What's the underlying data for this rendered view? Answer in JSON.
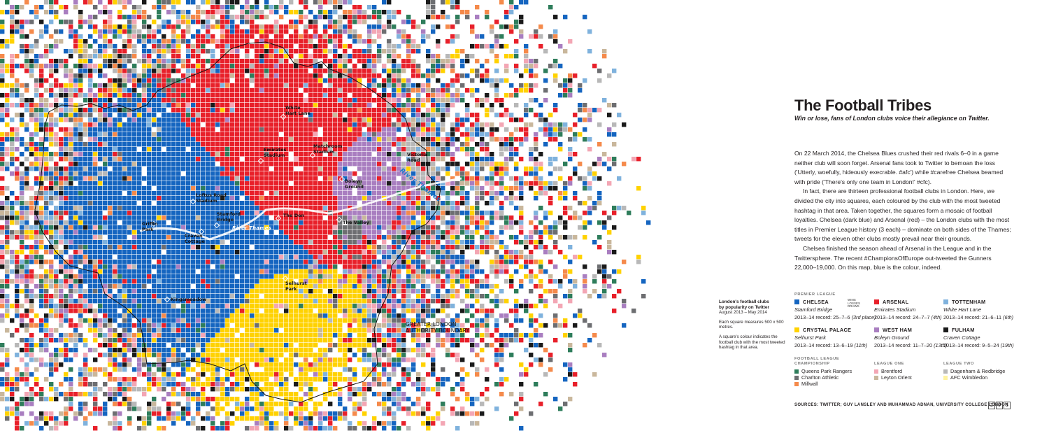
{
  "title": "The Football Tribes",
  "subtitle": "Win or lose, fans of London clubs voice their allegiance on Twitter.",
  "paragraphs": [
    "On 22 March 2014, the Chelsea Blues crushed their red rivals 6–0 in a game neither club will soon forget. Arsenal fans took to Twitter to bemoan the loss ('Utterly, woefully, hideously execrable. #afc') while #carefree Chelsea beamed with pride ('There's only one team in London!' #cfc).",
    "In fact, there are thirteen professional football clubs in London. Here, we divided the city into squares, each coloured by the club with the most tweeted hashtag in that area. Taken together, the squares form a mosaic of football loyalties. Chelsea (dark blue) and Arsenal (red) – the London clubs with the most titles in Premier League history (3 each) – dominate on both sides of the Thames; tweets for the eleven other clubs mostly prevail near their grounds.",
    "Chelsea finished the season ahead of Arsenal in the League and in the Twittersphere. The recent #ChampionsOfEurope out-tweeted the Gunners 22,000–19,000. On this map, blue is the colour, indeed."
  ],
  "map_note": {
    "title_line1": "London's football clubs",
    "title_line2": "by popularity on Twitter",
    "dates": "August 2013 – May 2014",
    "square": "Each square measures 500 x 500 metres.",
    "explain": "A square's colour indicates the football club with the most tweeted hashtag in that area."
  },
  "map": {
    "grounds": [
      {
        "label": "White\nHart Lane",
        "club": "tottenham"
      },
      {
        "label": "Emirates\nStadium",
        "club": "arsenal"
      },
      {
        "label": "Matchroom\nStadium",
        "club": "leyton_orient"
      },
      {
        "label": "Victoria\nRoad",
        "club": "dagenham"
      },
      {
        "label": "Boleyn\nGround",
        "club": "west_ham"
      },
      {
        "label": "Loftus Road\nStadium",
        "club": "qpr"
      },
      {
        "label": "Stamford\nBridge",
        "club": "chelsea"
      },
      {
        "label": "The Den",
        "club": "millwall"
      },
      {
        "label": "The Valley",
        "club": "charlton"
      },
      {
        "label": "Griffin\nPark",
        "club": "brentford"
      },
      {
        "label": "Craven\nCottage",
        "club": "fulham"
      },
      {
        "label": "Selhurst\nPark",
        "club": "crystal_palace"
      },
      {
        "label": "Kingsmeadow",
        "club": "wimbledon"
      }
    ],
    "river_label": "River Thames",
    "river_label_inner": "River Thames",
    "boundary_label_line1": "GREATER LONDON",
    "boundary_label_line2": "AUTHORITY BOUNDARY"
  },
  "legend": {
    "premier_heading": "PREMIER LEAGUE",
    "wld": [
      "WINS",
      "LOSSES",
      "DRAWS"
    ],
    "premier": [
      {
        "name": "CHELSEA",
        "ground": "Stamford Bridge",
        "record_prefix": "2013–14 record: 25–7–6",
        "position": "(3rd place)",
        "color": "#1565c0"
      },
      {
        "name": "ARSENAL",
        "ground": "Emirates Stadium",
        "record_prefix": "2013–14 record: 24–7–7",
        "position": "(4th)",
        "color": "#e8202a"
      },
      {
        "name": "TOTTENHAM",
        "ground": "White Hart Lane",
        "record_prefix": "2013–14 record: 21–6–11",
        "position": "(6th)",
        "color": "#7fb2dd"
      },
      {
        "name": "CRYSTAL PALACE",
        "ground": "Selhurst Park",
        "record_prefix": "2013–14 record: 13–6–19",
        "position": "(11th)",
        "color": "#ffd200"
      },
      {
        "name": "WEST HAM",
        "ground": "Boleyn Ground",
        "record_prefix": "2013–14 record: 11–7–20",
        "position": "(13th)",
        "color": "#a97ec0"
      },
      {
        "name": "FULHAM",
        "ground": "Craven Cottage",
        "record_prefix": "2013–14 record: 9–5–24",
        "position": "(19th)",
        "color": "#1a1a1a"
      }
    ],
    "championship_heading_1": "FOOTBALL LEAGUE",
    "championship_heading_2": "CHAMPIONSHIP",
    "championship": [
      {
        "name": "Queens Park Rangers",
        "color": "#2e7d5b"
      },
      {
        "name": "Charlton Athletic",
        "color": "#6d6e71"
      },
      {
        "name": "Millwall",
        "color": "#f58a4b"
      }
    ],
    "league_one_heading": "LEAGUE ONE",
    "league_one": [
      {
        "name": "Brentford",
        "color": "#f3a6b4"
      },
      {
        "name": "Leyton Orient",
        "color": "#c9b79c"
      }
    ],
    "league_two_heading": "LEAGUE TWO",
    "league_two": [
      {
        "name": "Dagenham & Redbridge",
        "color": "#b8b8b8"
      },
      {
        "name": "AFC Wimbledon",
        "color": "#fff3a0"
      }
    ]
  },
  "sources": "SOURCES: TWITTER; GUY LANSLEY AND MUHAMMAD ADNAN, UNIVERSITY COLLEGE LONDON",
  "page_number": [
    "2",
    "0",
    "3"
  ]
}
